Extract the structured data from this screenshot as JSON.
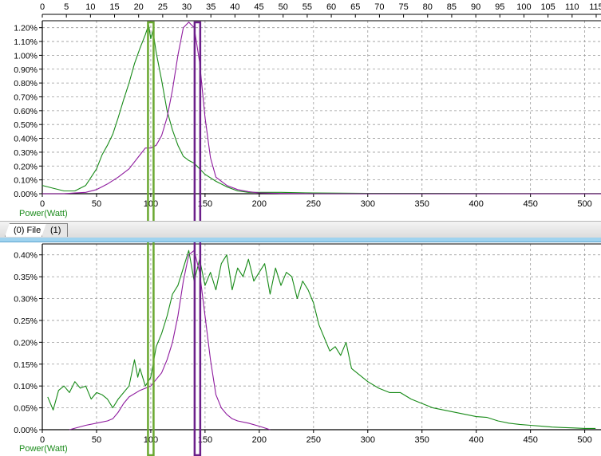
{
  "tabs": [
    {
      "label": "(0) File"
    },
    {
      "label": "(1)"
    }
  ],
  "top_axis": {
    "ticks": [
      0,
      5,
      10,
      15,
      20,
      25,
      30,
      35,
      40,
      45,
      50,
      55,
      60,
      65,
      70,
      75,
      80,
      85,
      90,
      95,
      100,
      105,
      110,
      115
    ],
    "range": [
      0,
      116
    ]
  },
  "colors": {
    "series_green": "#178a17",
    "series_purple": "#8e1a9e",
    "marker_green": "#6aa831",
    "marker_purple": "#6b1f8a",
    "axis_label": "#1c8c1c",
    "grid": "#9a9a9a"
  },
  "markers": [
    {
      "color": "green",
      "x_top": 23,
      "x_bottom": 100
    },
    {
      "color": "purple",
      "x_top": 32.5,
      "x_bottom": 143
    }
  ],
  "chart_data": [
    {
      "type": "line",
      "xlabel": "Power(Watt)",
      "ylabel": "",
      "xlim": [
        0,
        515
      ],
      "ylim": [
        0,
        1.25
      ],
      "xticks": [
        0,
        50,
        100,
        150,
        200,
        250,
        300,
        350,
        400,
        450,
        500
      ],
      "yticks": [
        "0.00%",
        "0.10%",
        "0.20%",
        "0.30%",
        "0.40%",
        "0.50%",
        "0.60%",
        "0.70%",
        "0.80%",
        "0.90%",
        "1.00%",
        "1.10%",
        "1.20%"
      ],
      "y_unit": "%",
      "grid": true,
      "series": [
        {
          "color": "green",
          "x": [
            0,
            10,
            20,
            30,
            40,
            50,
            55,
            60,
            65,
            70,
            75,
            80,
            85,
            90,
            95,
            98,
            100,
            102,
            105,
            110,
            115,
            120,
            125,
            130,
            135,
            140,
            145,
            150,
            160,
            170,
            180,
            190,
            200,
            220,
            250,
            300,
            350,
            400,
            450,
            500,
            515
          ],
          "values": [
            0.06,
            0.04,
            0.02,
            0.02,
            0.06,
            0.18,
            0.28,
            0.35,
            0.43,
            0.55,
            0.68,
            0.8,
            0.94,
            1.05,
            1.15,
            1.22,
            1.12,
            1.18,
            1.02,
            0.82,
            0.6,
            0.46,
            0.35,
            0.27,
            0.24,
            0.22,
            0.18,
            0.14,
            0.09,
            0.05,
            0.02,
            0.01,
            0.01,
            0.01,
            0.005,
            0.003,
            0.003,
            0.002,
            0.001,
            0.001,
            0.001
          ]
        },
        {
          "color": "purple",
          "x": [
            0,
            20,
            30,
            40,
            50,
            60,
            70,
            80,
            90,
            95,
            100,
            105,
            110,
            115,
            120,
            125,
            130,
            135,
            140,
            145,
            150,
            155,
            160,
            170,
            180,
            190,
            200,
            220,
            250,
            300,
            515
          ],
          "values": [
            0,
            0,
            0.005,
            0.01,
            0.03,
            0.07,
            0.12,
            0.18,
            0.28,
            0.33,
            0.33,
            0.35,
            0.42,
            0.55,
            0.75,
            1.0,
            1.2,
            1.24,
            1.2,
            0.95,
            0.55,
            0.26,
            0.12,
            0.06,
            0.03,
            0.015,
            0.006,
            0.002,
            0,
            0,
            0
          ]
        }
      ]
    },
    {
      "type": "line",
      "xlabel": "Power(Watt)",
      "ylabel": "",
      "xlim": [
        0,
        515
      ],
      "ylim": [
        0,
        0.425
      ],
      "xticks": [
        0,
        50,
        100,
        150,
        200,
        250,
        300,
        350,
        400,
        450,
        500
      ],
      "yticks": [
        "0.00%",
        "0.05%",
        "0.10%",
        "0.15%",
        "0.20%",
        "0.25%",
        "0.30%",
        "0.35%",
        "0.40%"
      ],
      "y_unit": "%",
      "grid": true,
      "series": [
        {
          "color": "green",
          "x": [
            5,
            10,
            15,
            20,
            25,
            30,
            35,
            40,
            45,
            50,
            55,
            60,
            65,
            70,
            75,
            80,
            85,
            88,
            90,
            95,
            100,
            105,
            110,
            115,
            120,
            125,
            130,
            135,
            140,
            145,
            150,
            155,
            160,
            165,
            170,
            175,
            180,
            185,
            190,
            195,
            200,
            205,
            210,
            215,
            220,
            225,
            230,
            235,
            240,
            245,
            250,
            255,
            260,
            265,
            270,
            275,
            280,
            285,
            290,
            295,
            300,
            310,
            320,
            330,
            340,
            350,
            360,
            370,
            380,
            390,
            400,
            410,
            420,
            430,
            440,
            450,
            460,
            470,
            480,
            490,
            500,
            510
          ],
          "values": [
            0.075,
            0.045,
            0.09,
            0.1,
            0.085,
            0.11,
            0.095,
            0.1,
            0.07,
            0.085,
            0.08,
            0.07,
            0.05,
            0.07,
            0.085,
            0.1,
            0.16,
            0.12,
            0.14,
            0.1,
            0.12,
            0.19,
            0.22,
            0.26,
            0.31,
            0.33,
            0.37,
            0.41,
            0.34,
            0.39,
            0.33,
            0.36,
            0.32,
            0.38,
            0.4,
            0.32,
            0.37,
            0.35,
            0.39,
            0.34,
            0.36,
            0.38,
            0.31,
            0.37,
            0.33,
            0.36,
            0.35,
            0.3,
            0.34,
            0.32,
            0.29,
            0.24,
            0.21,
            0.18,
            0.19,
            0.17,
            0.2,
            0.14,
            0.13,
            0.12,
            0.11,
            0.095,
            0.085,
            0.085,
            0.07,
            0.06,
            0.05,
            0.045,
            0.04,
            0.035,
            0.03,
            0.028,
            0.02,
            0.015,
            0.012,
            0.01,
            0.008,
            0.006,
            0.005,
            0.004,
            0.003,
            0.003
          ]
        },
        {
          "color": "purple",
          "x": [
            25,
            40,
            50,
            60,
            65,
            70,
            75,
            80,
            90,
            100,
            110,
            115,
            120,
            125,
            130,
            135,
            140,
            145,
            150,
            155,
            160,
            165,
            170,
            175,
            180,
            190,
            200,
            210
          ],
          "values": [
            0,
            0.01,
            0.015,
            0.02,
            0.025,
            0.04,
            0.06,
            0.075,
            0.09,
            0.1,
            0.13,
            0.16,
            0.2,
            0.26,
            0.34,
            0.4,
            0.41,
            0.36,
            0.26,
            0.16,
            0.08,
            0.05,
            0.035,
            0.025,
            0.02,
            0.015,
            0.008,
            0
          ]
        }
      ]
    }
  ]
}
